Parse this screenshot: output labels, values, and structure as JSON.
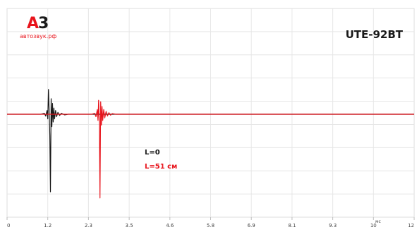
{
  "brand": {
    "mark_a": "А",
    "mark_3": "3",
    "domain": "автозвук.рф"
  },
  "model": "UTE-92BT",
  "chart_data": {
    "type": "line",
    "title": "",
    "xlabel": "мс",
    "ylabel": "",
    "xlim": [
      0,
      12
    ],
    "x_ticks": [
      "0",
      "1.2",
      "2.3",
      "3.5",
      "4.6",
      "5.8",
      "6.9",
      "8.1",
      "9.3",
      "10",
      "12"
    ],
    "grid": true,
    "annotations": [
      "L=0",
      "L=51 см"
    ],
    "colors": {
      "series_1": "#1a1a1a",
      "series_2": "#e8141c"
    },
    "series": [
      {
        "x": [
          0,
          1.0,
          1.1,
          1.14,
          1.18,
          1.2,
          1.22,
          1.24,
          1.26,
          1.28,
          1.3,
          1.32,
          1.34,
          1.36,
          1.38,
          1.4,
          1.43,
          1.46,
          1.5,
          1.55,
          1.6,
          1.7,
          1.8,
          12
        ],
        "y": [
          0,
          0,
          0.03,
          -0.06,
          0.12,
          -0.15,
          0.8,
          0.15,
          -0.7,
          -2.5,
          0.5,
          -0.4,
          0.35,
          -0.25,
          0.2,
          -0.15,
          0.12,
          -0.08,
          0.06,
          -0.04,
          0.03,
          -0.02,
          0,
          0
        ]
      },
      {
        "x": [
          0,
          2.5,
          2.58,
          2.62,
          2.66,
          2.68,
          2.7,
          2.72,
          2.74,
          2.76,
          2.78,
          2.8,
          2.82,
          2.85,
          2.88,
          2.92,
          2.96,
          3.0,
          3.05,
          3.1,
          3.2,
          12
        ],
        "y": [
          0,
          0,
          0.03,
          -0.08,
          0.15,
          -0.2,
          0.45,
          -0.3,
          -2.7,
          0.4,
          -0.35,
          0.25,
          -0.2,
          0.15,
          -0.12,
          0.09,
          -0.06,
          0.05,
          -0.03,
          0.02,
          0,
          0
        ]
      }
    ]
  }
}
